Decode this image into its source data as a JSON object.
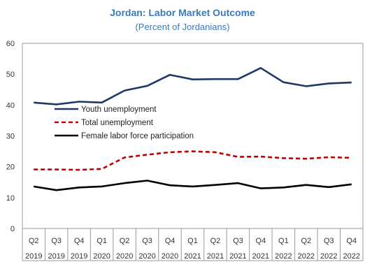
{
  "chart_data": {
    "type": "line",
    "title": "Jordan: Labor Market Outcome",
    "subtitle": "(Percent of Jordanians)",
    "xlabel": "",
    "ylabel": "",
    "ylim": [
      0,
      60
    ],
    "yticks": [
      0,
      10,
      20,
      30,
      40,
      50,
      60
    ],
    "grid": false,
    "legend_position": "left",
    "categories": [
      {
        "quarter": "Q2",
        "year": "2019"
      },
      {
        "quarter": "Q3",
        "year": "2019"
      },
      {
        "quarter": "Q4",
        "year": "2019"
      },
      {
        "quarter": "Q1",
        "year": "2020"
      },
      {
        "quarter": "Q2",
        "year": "2020"
      },
      {
        "quarter": "Q3",
        "year": "2020"
      },
      {
        "quarter": "Q4",
        "year": "2020"
      },
      {
        "quarter": "Q1",
        "year": "2021"
      },
      {
        "quarter": "Q2",
        "year": "2021"
      },
      {
        "quarter": "Q3",
        "year": "2021"
      },
      {
        "quarter": "Q4",
        "year": "2021"
      },
      {
        "quarter": "Q1",
        "year": "2022"
      },
      {
        "quarter": "Q2",
        "year": "2022"
      },
      {
        "quarter": "Q3",
        "year": "2022"
      },
      {
        "quarter": "Q4",
        "year": "2022"
      }
    ],
    "series": [
      {
        "name": "Youth unemployment",
        "color": "#1f3864",
        "dash": "solid",
        "values": [
          40.8,
          40.2,
          41.1,
          40.8,
          44.7,
          46.2,
          49.8,
          48.3,
          48.4,
          48.4,
          52.0,
          47.4,
          46.1,
          47.0,
          47.3
        ]
      },
      {
        "name": "Total unemployment",
        "color": "#c00000",
        "dash": "dashed",
        "values": [
          19.1,
          19.1,
          19.0,
          19.3,
          23.0,
          23.9,
          24.7,
          25.0,
          24.7,
          23.2,
          23.3,
          22.8,
          22.6,
          23.1,
          22.9
        ]
      },
      {
        "name": "Female labor force participation",
        "color": "#000000",
        "dash": "solid",
        "values": [
          13.6,
          12.4,
          13.3,
          13.6,
          14.7,
          15.5,
          14.0,
          13.6,
          14.1,
          14.7,
          13.0,
          13.3,
          14.1,
          13.4,
          14.3
        ]
      }
    ]
  }
}
